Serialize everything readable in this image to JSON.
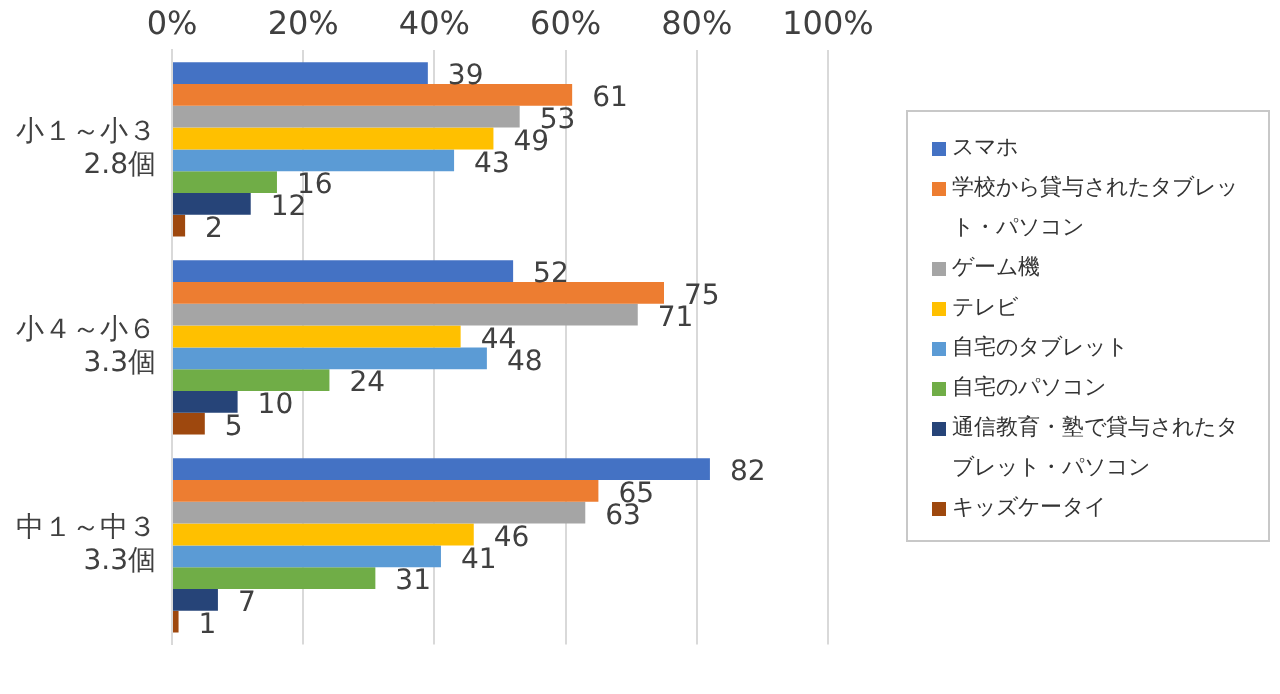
{
  "chart_data": {
    "type": "bar",
    "orientation": "horizontal",
    "categories": [
      "小１～小３\n2.8個",
      "小４～小６\n3.3個",
      "中１～中３\n3.3個"
    ],
    "series": [
      {
        "name": "スマホ",
        "color": "#4472c4",
        "values": [
          39,
          52,
          82
        ]
      },
      {
        "name": "学校から貸与されたタブレット・パソコン",
        "color": "#ed7d31",
        "values": [
          61,
          75,
          65
        ]
      },
      {
        "name": "ゲーム機",
        "color": "#a5a5a5",
        "values": [
          53,
          71,
          63
        ]
      },
      {
        "name": "テレビ",
        "color": "#ffc000",
        "values": [
          49,
          44,
          46
        ]
      },
      {
        "name": "自宅のタブレット",
        "color": "#5b9bd5",
        "values": [
          43,
          48,
          41
        ]
      },
      {
        "name": "自宅のパソコン",
        "color": "#70ad47",
        "values": [
          16,
          24,
          31
        ]
      },
      {
        "name": "通信教育・塾で貸与されたタブレット・パソコン",
        "color": "#264478",
        "values": [
          12,
          10,
          7
        ]
      },
      {
        "name": "キッズケータイ",
        "color": "#9e480e",
        "values": [
          2,
          5,
          1
        ]
      }
    ],
    "xlim": [
      0,
      100
    ],
    "xticks": [
      {
        "value": 0,
        "label": "0%"
      },
      {
        "value": 20,
        "label": "20%"
      },
      {
        "value": 40,
        "label": "40%"
      },
      {
        "value": 60,
        "label": "60%"
      },
      {
        "value": 80,
        "label": "80%"
      },
      {
        "value": 100,
        "label": "100%"
      }
    ],
    "grid": "x",
    "legend": "right",
    "data_labels": true
  }
}
